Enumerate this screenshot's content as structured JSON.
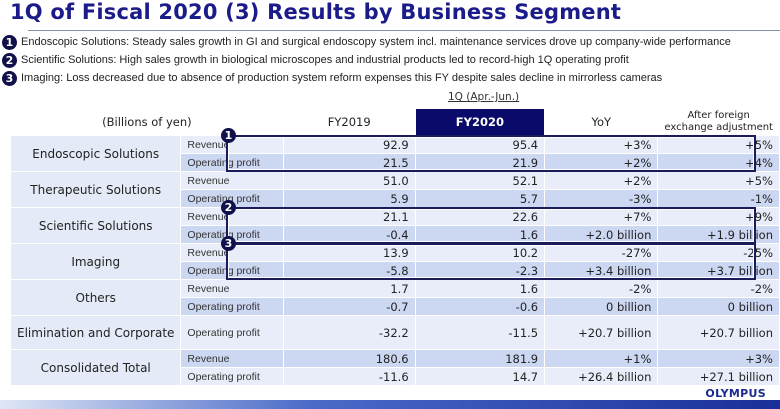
{
  "title": "1Q of Fiscal 2020 (3) Results by Business Segment",
  "bullets": [
    {
      "num": "1",
      "text": "Endoscopic Solutions: Steady sales growth in GI and surgical endoscopy system incl. maintenance services drove up company-wide performance"
    },
    {
      "num": "2",
      "text": "Scientific Solutions: High sales growth in biological microscopes and industrial products led to record-high 1Q operating profit"
    },
    {
      "num": "3",
      "text": "Imaging: Loss decreased due to absence of production system reform expenses this FY despite sales decline in mirrorless cameras"
    }
  ],
  "period": "1Q (Apr.-Jun.)",
  "headers": {
    "unit": "(Billions of yen)",
    "fy2019": "FY2019",
    "fy2020": "FY2020",
    "yoy": "YoY",
    "fx_line1": "After foreign",
    "fx_line2": "exchange adjustment"
  },
  "rows": [
    {
      "segment": "Endoscopic Solutions",
      "metric": "Revenue",
      "fy2019": "92.9",
      "fy2020": "95.4",
      "yoy": "+3%",
      "fx": "+5%"
    },
    {
      "metric": "Operating profit",
      "fy2019": "21.5",
      "fy2020": "21.9",
      "yoy": "+2%",
      "fx": "+4%"
    },
    {
      "segment": "Therapeutic Solutions",
      "metric": "Revenue",
      "fy2019": "51.0",
      "fy2020": "52.1",
      "yoy": "+2%",
      "fx": "+5%"
    },
    {
      "metric": "Operating profit",
      "fy2019": "5.9",
      "fy2020": "5.7",
      "yoy": "-3%",
      "fx": "-1%"
    },
    {
      "segment": "Scientific Solutions",
      "metric": "Revenue",
      "fy2019": "21.1",
      "fy2020": "22.6",
      "yoy": "+7%",
      "fx": "+9%"
    },
    {
      "metric": "Operating profit",
      "fy2019": "-0.4",
      "fy2020": "1.6",
      "yoy": "+2.0 billion",
      "fx": "+1.9 billion"
    },
    {
      "segment": "Imaging",
      "metric": "Revenue",
      "fy2019": "13.9",
      "fy2020": "10.2",
      "yoy": "-27%",
      "fx": "-25%"
    },
    {
      "metric": "Operating profit",
      "fy2019": "-5.8",
      "fy2020": "-2.3",
      "yoy": "+3.4 billion",
      "fx": "+3.7 billion"
    },
    {
      "segment": "Others",
      "metric": "Revenue",
      "fy2019": "1.7",
      "fy2020": "1.6",
      "yoy": "-2%",
      "fx": "-2%"
    },
    {
      "metric": "Operating profit",
      "fy2019": "-0.7",
      "fy2020": "-0.6",
      "yoy": "0 billion",
      "fx": "0 billion"
    },
    {
      "segment": "Elimination and Corporate",
      "metric": "Operating profit",
      "fy2019": "-32.2",
      "fy2020": "-11.5",
      "yoy": "+20.7 billion",
      "fx": "+20.7 billion"
    },
    {
      "segment": "Consolidated Total",
      "metric": "Revenue",
      "fy2019": "180.6",
      "fy2020": "181.9",
      "yoy": "+1%",
      "fx": "+3%"
    },
    {
      "metric": "Operating profit",
      "fy2019": "-11.6",
      "fy2020": "14.7",
      "yoy": "+26.4 billion",
      "fx": "+27.1 billion"
    }
  ],
  "logo": "OLYMPUS"
}
